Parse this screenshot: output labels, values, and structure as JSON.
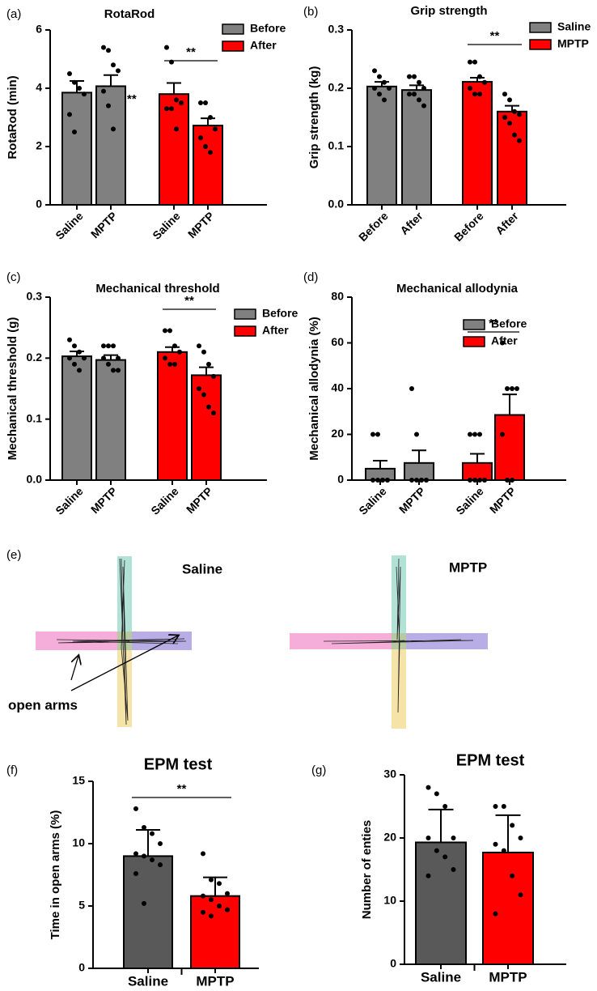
{
  "chart_data": [
    {
      "type": "bar",
      "label": "(a)",
      "title": "RotaRod",
      "ylabel": "RotaRod (min)",
      "categories": [
        "Saline",
        "MPTP",
        "Saline",
        "MPTP"
      ],
      "series": [
        {
          "name": "Before",
          "color": "#808080",
          "values": [
            3.85,
            4.07,
            null,
            null
          ],
          "errors": [
            0.4,
            0.38,
            null,
            null
          ]
        },
        {
          "name": "After",
          "color": "#ff0000",
          "values": [
            null,
            null,
            3.8,
            2.72
          ],
          "errors": [
            null,
            null,
            0.38,
            0.25
          ]
        }
      ],
      "points": [
        [
          4.5,
          4.2,
          4.0,
          3.8,
          3.1,
          2.5
        ],
        [
          5.4,
          5.3,
          4.8,
          4.6,
          3.9,
          3.4,
          2.6
        ],
        [
          5.4,
          4.9,
          3.6,
          3.5,
          3.3,
          3.3,
          2.6
        ],
        [
          3.5,
          3.5,
          3.0,
          2.6,
          2.3,
          2.0,
          1.8
        ]
      ],
      "ylim": [
        0,
        6
      ],
      "yticks": [
        0,
        2,
        4,
        6
      ],
      "significance": {
        "text": "**",
        "between": [
          2,
          3
        ]
      },
      "annotations": [
        "**"
      ]
    },
    {
      "type": "bar",
      "label": "(b)",
      "title": "Grip strength",
      "ylabel": "Grip strength (kg)",
      "categories": [
        "Before",
        "After",
        "Before",
        "After"
      ],
      "series": [
        {
          "name": "Saline",
          "color": "#808080",
          "values": [
            0.203,
            0.197,
            null,
            null
          ],
          "errors": [
            0.008,
            0.008,
            null,
            null
          ]
        },
        {
          "name": "MPTP",
          "color": "#ff0000",
          "values": [
            null,
            null,
            0.211,
            0.16
          ],
          "errors": [
            null,
            null,
            0.007,
            0.01
          ]
        }
      ],
      "points": [
        [
          0.23,
          0.22,
          0.21,
          0.2,
          0.2,
          0.19,
          0.18
        ],
        [
          0.22,
          0.22,
          0.21,
          0.2,
          0.19,
          0.19,
          0.18,
          0.17
        ],
        [
          0.245,
          0.245,
          0.22,
          0.21,
          0.2,
          0.19,
          0.19
        ],
        [
          0.19,
          0.18,
          0.16,
          0.155,
          0.15,
          0.14,
          0.12,
          0.11
        ]
      ],
      "ylim": [
        0,
        0.3
      ],
      "yticks": [
        {
          "value": 0,
          "label": "0.0"
        },
        0.1,
        0.2,
        0.3
      ],
      "significance": {
        "text": "**",
        "between": [
          2,
          3
        ]
      }
    },
    {
      "type": "bar",
      "label": "(c)",
      "title": "Mechanical threshold",
      "ylabel": "Mechanical threshold (g)",
      "categories": [
        "Saline",
        "MPTP",
        "Saline",
        "MPTP"
      ],
      "series": [
        {
          "name": "Before",
          "color": "#808080",
          "values": [
            0.203,
            0.197,
            null,
            null
          ],
          "errors": [
            0.008,
            0.008,
            null,
            null
          ]
        },
        {
          "name": "After",
          "color": "#ff0000",
          "values": [
            null,
            null,
            0.21,
            0.172
          ],
          "errors": [
            null,
            null,
            0.008,
            0.013
          ]
        }
      ],
      "points": [
        [
          0.23,
          0.22,
          0.21,
          0.2,
          0.2,
          0.19,
          0.18
        ],
        [
          0.22,
          0.22,
          0.22,
          0.2,
          0.2,
          0.19,
          0.18,
          0.18
        ],
        [
          0.245,
          0.245,
          0.22,
          0.21,
          0.2,
          0.19,
          0.19
        ],
        [
          0.22,
          0.21,
          0.19,
          0.17,
          0.15,
          0.14,
          0.12,
          0.11
        ]
      ],
      "ylim": [
        0,
        0.3
      ],
      "yticks": [
        {
          "value": 0,
          "label": "0.0"
        },
        0.1,
        0.2,
        0.3
      ],
      "significance": {
        "text": "**",
        "between": [
          2,
          3
        ]
      }
    },
    {
      "type": "bar",
      "label": "(d)",
      "title": "Mechanical allodynia",
      "ylabel": "Mechanical allodynia (%)",
      "categories": [
        "Saline",
        "MPTP",
        "Saline",
        "MPTP"
      ],
      "series": [
        {
          "name": "Before",
          "color": "#808080",
          "values": [
            5,
            7.5,
            null,
            null
          ],
          "errors": [
            3.5,
            5.5,
            null,
            null
          ]
        },
        {
          "name": "After",
          "color": "#ff0000",
          "values": [
            null,
            null,
            7.5,
            28.5
          ],
          "errors": [
            null,
            null,
            4,
            9
          ]
        }
      ],
      "points": [
        [
          20,
          20,
          0,
          0,
          0,
          0,
          0,
          0
        ],
        [
          40,
          20,
          0,
          0,
          0,
          0,
          0,
          0
        ],
        [
          20,
          20,
          20,
          0,
          0,
          0,
          0,
          0
        ],
        [
          60,
          40,
          40,
          40,
          20,
          0,
          0
        ]
      ],
      "ylim": [
        0,
        80
      ],
      "yticks": [
        0,
        20,
        40,
        60,
        80
      ],
      "significance": {
        "text": "**",
        "between": [
          2,
          3
        ]
      }
    },
    {
      "type": "bar",
      "label": "(f)",
      "title": "EPM test",
      "ylabel": "Time in open arms (%)",
      "categories": [
        "Saline",
        "MPTP"
      ],
      "values": [
        9.0,
        5.8
      ],
      "errors": [
        2.1,
        1.5
      ],
      "colors": [
        "#595959",
        "#ff0000"
      ],
      "points": [
        [
          12.8,
          11.3,
          10.8,
          10,
          9.2,
          9,
          8.7,
          8.3,
          7.6,
          5.2
        ],
        [
          9.2,
          7.1,
          6.8,
          6,
          5.8,
          5.5,
          5,
          4.7,
          4.5,
          4.2
        ]
      ],
      "ylim": [
        0,
        15
      ],
      "yticks": [
        0,
        5,
        10,
        15
      ],
      "significance": {
        "text": "**",
        "between": [
          0,
          1
        ]
      }
    },
    {
      "type": "bar",
      "label": "(g)",
      "title": "EPM test",
      "ylabel": "Number of enties",
      "categories": [
        "Saline",
        "MPTP"
      ],
      "values": [
        19.3,
        17.7
      ],
      "errors": [
        5.2,
        5.9
      ],
      "colors": [
        "#595959",
        "#ff0000"
      ],
      "points": [
        [
          28,
          27,
          25,
          20,
          20,
          18,
          17,
          15,
          14
        ],
        [
          25,
          25,
          22,
          20,
          19,
          18,
          14,
          11,
          8
        ]
      ],
      "ylim": [
        0,
        30
      ],
      "yticks": [
        0,
        10,
        20,
        30
      ]
    }
  ],
  "maze_panel": {
    "label": "(e)",
    "groups": [
      "Saline",
      "MPTP"
    ],
    "annotation": "open arms"
  }
}
